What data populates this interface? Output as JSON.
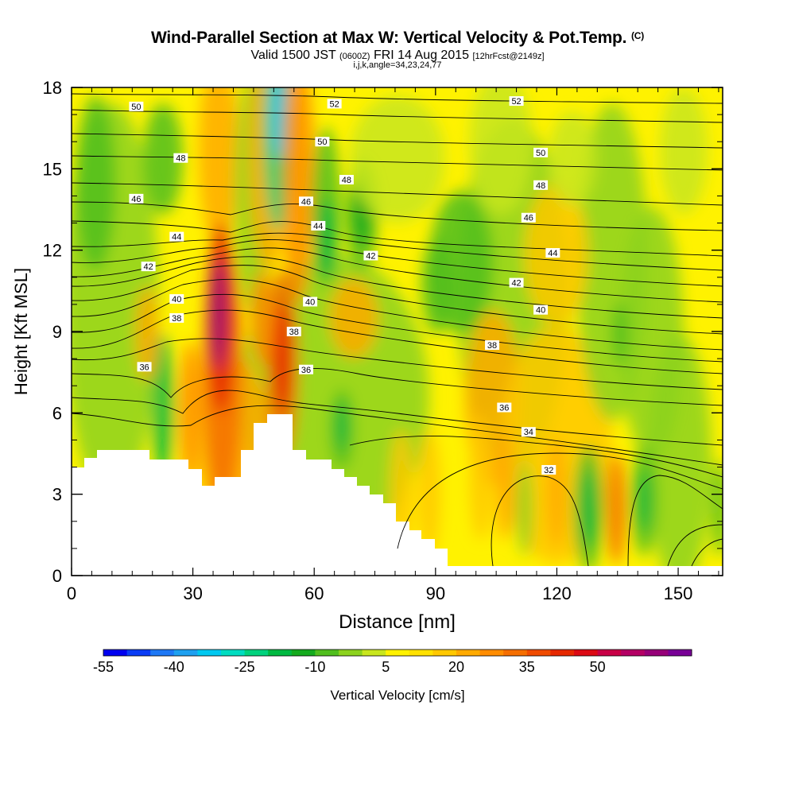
{
  "chart_data": {
    "type": "heatmap",
    "title": "Wind-Parallel Section at Max W: Vertical Velocity & Pot.Temp.",
    "title_unit": "(C)",
    "subtitle": {
      "valid": "Valid 1500 JST",
      "utc": "(0600Z)",
      "date": "FRI 14 Aug 2015",
      "forecast": "[12hrFcst@2149z]"
    },
    "params": "i,j,k,angle=34,23,24,77",
    "xlabel": "Distance [nm]",
    "ylabel": "Height [Kft MSL]",
    "xlim": [
      0,
      161
    ],
    "ylim": [
      0,
      18
    ],
    "x_ticks": [
      "0",
      "30",
      "60",
      "90",
      "120",
      "150"
    ],
    "y_ticks": [
      "0",
      "3",
      "6",
      "9",
      "12",
      "15",
      "18"
    ],
    "colorbar": {
      "label": "Vertical Velocity [cm/s]",
      "tick_labels": [
        "-55",
        "-40",
        "-25",
        "-10",
        "5",
        "20",
        "35",
        "50"
      ],
      "colors": [
        "#0000f0",
        "#0a3cf5",
        "#1e78f5",
        "#1ea0f0",
        "#00c8f0",
        "#00dcc0",
        "#00d27d",
        "#00b941",
        "#14aa1e",
        "#50be1e",
        "#8cd21e",
        "#c8e61e",
        "#fff200",
        "#ffe100",
        "#ffc800",
        "#ffaa00",
        "#ff8c00",
        "#f56e00",
        "#f04b00",
        "#e62800",
        "#dc0a14",
        "#c80046",
        "#b40064",
        "#960078",
        "#780096"
      ]
    },
    "isentropes": {
      "units": "C",
      "labels": [
        {
          "text": "50",
          "x": 16,
          "y": 17.3
        },
        {
          "text": "48",
          "x": 27,
          "y": 15.4
        },
        {
          "text": "46",
          "x": 16,
          "y": 13.9
        },
        {
          "text": "44",
          "x": 26,
          "y": 12.5
        },
        {
          "text": "42",
          "x": 19,
          "y": 11.4
        },
        {
          "text": "40",
          "x": 26,
          "y": 10.2
        },
        {
          "text": "38",
          "x": 26,
          "y": 9.5
        },
        {
          "text": "36",
          "x": 18,
          "y": 7.7
        },
        {
          "text": "52",
          "x": 65,
          "y": 17.4
        },
        {
          "text": "50",
          "x": 62,
          "y": 16.0
        },
        {
          "text": "48",
          "x": 68,
          "y": 14.6
        },
        {
          "text": "46",
          "x": 58,
          "y": 13.8
        },
        {
          "text": "44",
          "x": 61,
          "y": 12.9
        },
        {
          "text": "42",
          "x": 74,
          "y": 11.8
        },
        {
          "text": "40",
          "x": 59,
          "y": 10.1
        },
        {
          "text": "38",
          "x": 55,
          "y": 9.0
        },
        {
          "text": "36",
          "x": 58,
          "y": 7.6
        },
        {
          "text": "52",
          "x": 110,
          "y": 17.5
        },
        {
          "text": "50",
          "x": 116,
          "y": 15.6
        },
        {
          "text": "48",
          "x": 116,
          "y": 14.4
        },
        {
          "text": "46",
          "x": 113,
          "y": 13.2
        },
        {
          "text": "44",
          "x": 119,
          "y": 11.9
        },
        {
          "text": "42",
          "x": 110,
          "y": 10.8
        },
        {
          "text": "40",
          "x": 116,
          "y": 9.8
        },
        {
          "text": "38",
          "x": 104,
          "y": 8.5
        },
        {
          "text": "36",
          "x": 107,
          "y": 6.2
        },
        {
          "text": "34",
          "x": 113,
          "y": 5.3
        },
        {
          "text": "32",
          "x": 118,
          "y": 3.9
        }
      ]
    }
  }
}
